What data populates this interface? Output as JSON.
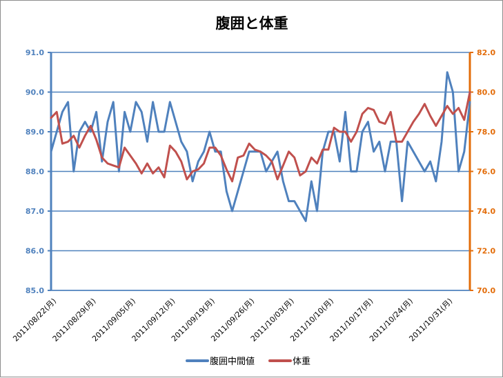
{
  "chart_data": {
    "type": "line",
    "title": "腹囲と体重",
    "xlabel": "",
    "ylabel_left": "",
    "ylabel_right": "",
    "y_left_lim": [
      85.0,
      91.0
    ],
    "y_left_ticks": [
      "85.0",
      "86.0",
      "87.0",
      "88.0",
      "89.0",
      "90.0",
      "91.0"
    ],
    "y_right_lim": [
      70.0,
      82.0
    ],
    "y_right_ticks": [
      "70.0",
      "72.0",
      "74.0",
      "76.0",
      "78.0",
      "80.0",
      "82.0"
    ],
    "x_tick_labels": [
      "2011/08/22(月)",
      "2011/08/29(月)",
      "2011/09/05(月)",
      "2011/09/12(月)",
      "2011/09/19(月)",
      "2011/09/26(月)",
      "2011/10/03(月)",
      "2011/10/10(月)",
      "2011/10/17(月)",
      "2011/10/24(月)",
      "2011/10/31(月)"
    ],
    "x_first_date": "2011/08/22",
    "x_last_date": "2011/11/06",
    "grid": "horizontal major gridlines",
    "legend_position": "bottom",
    "colors": {
      "waist": "#4f81bd",
      "weight": "#c0504d",
      "left_axis": "#4f81bd",
      "right_axis": "#e36c09",
      "grid": "#4f81bd"
    },
    "series": [
      {
        "name": "腹囲中間値",
        "axis": "left",
        "values": [
          88.5,
          89.0,
          89.5,
          89.75,
          88.0,
          89.0,
          89.25,
          89.0,
          89.5,
          88.25,
          89.25,
          89.75,
          88.0,
          89.5,
          89.0,
          89.75,
          89.5,
          88.75,
          89.75,
          89.0,
          89.0,
          89.75,
          89.25,
          88.75,
          88.5,
          87.75,
          88.25,
          88.5,
          89.0,
          88.5,
          88.5,
          87.5,
          87.0,
          87.5,
          88.0,
          88.5,
          88.5,
          88.5,
          88.0,
          88.25,
          88.5,
          87.75,
          87.25,
          87.25,
          87.0,
          86.75,
          87.75,
          87.0,
          88.5,
          89.0,
          89.0,
          88.25,
          89.5,
          88.0,
          88.0,
          89.0,
          89.25,
          88.5,
          88.75,
          88.0,
          88.75,
          88.75,
          87.25,
          88.75,
          88.5,
          88.25,
          88.0,
          88.25,
          87.75,
          88.75,
          90.5,
          90.0,
          88.0,
          88.5,
          89.75
        ]
      },
      {
        "name": "体重",
        "axis": "right",
        "values": [
          78.7,
          79.0,
          77.4,
          77.5,
          77.8,
          77.2,
          77.8,
          78.3,
          77.6,
          76.7,
          76.4,
          76.3,
          76.2,
          77.2,
          76.8,
          76.4,
          75.9,
          76.4,
          75.9,
          76.2,
          75.7,
          77.3,
          77.0,
          76.5,
          75.6,
          76.0,
          76.1,
          76.4,
          77.2,
          77.2,
          76.8,
          76.1,
          75.5,
          76.7,
          76.8,
          77.4,
          77.1,
          77.0,
          76.8,
          76.5,
          75.6,
          76.3,
          77.0,
          76.7,
          75.8,
          76.0,
          76.7,
          76.4,
          77.1,
          77.1,
          78.2,
          78.0,
          78.0,
          77.5,
          78.0,
          78.9,
          79.2,
          79.1,
          78.5,
          78.4,
          79.0,
          77.5,
          77.5,
          78.0,
          78.5,
          78.9,
          79.4,
          78.8,
          78.3,
          78.8,
          79.3,
          78.9,
          79.2,
          78.6,
          80.0
        ]
      }
    ]
  }
}
